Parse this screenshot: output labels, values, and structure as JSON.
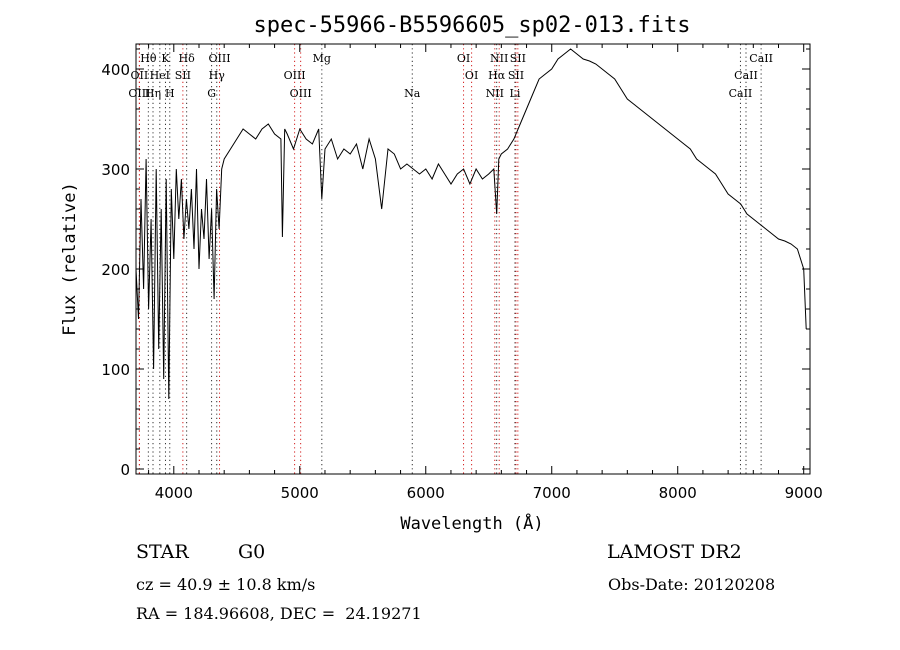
{
  "chart_data": {
    "type": "line",
    "title": "spec-55966-B5596605_sp02-013.fits",
    "xlabel": "Wavelength (Å)",
    "ylabel": "Flux (relative)",
    "xlim": [
      3700,
      9050
    ],
    "ylim": [
      -5,
      425
    ],
    "xticks": [
      4000,
      5000,
      6000,
      7000,
      8000,
      9000
    ],
    "yticks": [
      0,
      100,
      200,
      300,
      400
    ],
    "grid": false,
    "series": [
      {
        "name": "spectrum",
        "x": [
          3700,
          3720,
          3740,
          3760,
          3780,
          3800,
          3820,
          3840,
          3860,
          3880,
          3900,
          3920,
          3940,
          3960,
          3980,
          4000,
          4020,
          4040,
          4060,
          4080,
          4100,
          4120,
          4140,
          4160,
          4180,
          4200,
          4220,
          4240,
          4260,
          4280,
          4300,
          4320,
          4340,
          4360,
          4380,
          4400,
          4450,
          4500,
          4550,
          4600,
          4650,
          4700,
          4750,
          4800,
          4850,
          4862,
          4880,
          4900,
          4950,
          5000,
          5050,
          5100,
          5150,
          5175,
          5200,
          5250,
          5300,
          5350,
          5400,
          5450,
          5500,
          5550,
          5600,
          5650,
          5700,
          5750,
          5800,
          5850,
          5900,
          5950,
          6000,
          6050,
          6100,
          6150,
          6200,
          6250,
          6300,
          6350,
          6400,
          6450,
          6500,
          6540,
          6563,
          6580,
          6600,
          6650,
          6700,
          6750,
          6800,
          6850,
          6900,
          6950,
          7000,
          7050,
          7100,
          7150,
          7200,
          7250,
          7300,
          7350,
          7400,
          7450,
          7500,
          7550,
          7600,
          7650,
          7700,
          7750,
          7800,
          7850,
          7900,
          7950,
          8000,
          8050,
          8100,
          8150,
          8200,
          8250,
          8300,
          8350,
          8400,
          8450,
          8500,
          8550,
          8600,
          8650,
          8700,
          8750,
          8800,
          8850,
          8900,
          8950,
          9000,
          9020
        ],
        "values": [
          200,
          150,
          270,
          180,
          310,
          160,
          250,
          100,
          300,
          120,
          260,
          90,
          290,
          70,
          280,
          210,
          300,
          250,
          290,
          230,
          270,
          240,
          280,
          220,
          300,
          200,
          260,
          230,
          290,
          210,
          260,
          170,
          280,
          240,
          300,
          310,
          320,
          330,
          340,
          335,
          330,
          340,
          345,
          335,
          330,
          232,
          340,
          335,
          320,
          340,
          330,
          325,
          340,
          270,
          320,
          330,
          310,
          320,
          315,
          325,
          300,
          330,
          310,
          260,
          320,
          315,
          300,
          305,
          300,
          295,
          300,
          290,
          305,
          295,
          285,
          295,
          300,
          285,
          300,
          290,
          295,
          300,
          255,
          310,
          315,
          320,
          330,
          345,
          360,
          375,
          390,
          395,
          400,
          410,
          415,
          420,
          415,
          410,
          408,
          405,
          400,
          395,
          390,
          380,
          370,
          365,
          360,
          355,
          350,
          345,
          340,
          335,
          330,
          325,
          320,
          310,
          305,
          300,
          295,
          285,
          275,
          270,
          265,
          255,
          250,
          245,
          240,
          235,
          230,
          228,
          225,
          220,
          200,
          140
        ]
      }
    ],
    "lines": [
      {
        "name": "Hθ",
        "x": 3798,
        "row": 1,
        "color": "black"
      },
      {
        "name": "K",
        "x": 3934,
        "row": 1,
        "color": "black"
      },
      {
        "name": "Hδ",
        "x": 4102,
        "row": 1,
        "color": "black"
      },
      {
        "name": "OIII",
        "x": 4363,
        "row": 1,
        "color": "red"
      },
      {
        "name": "Mg",
        "x": 5175,
        "row": 1,
        "color": "black"
      },
      {
        "name": "OI",
        "x": 6300,
        "row": 1,
        "color": "red"
      },
      {
        "name": "NII",
        "x": 6583,
        "row": 1,
        "color": "red"
      },
      {
        "name": "SII",
        "x": 6731,
        "row": 1,
        "color": "red"
      },
      {
        "name": "CaII",
        "x": 8662,
        "row": 1,
        "color": "black"
      },
      {
        "name": "OII",
        "x": 3727,
        "row": 2,
        "color": "red"
      },
      {
        "name": "HeI",
        "x": 3889,
        "row": 2,
        "color": "black"
      },
      {
        "name": "SII",
        "x": 4072,
        "row": 2,
        "color": "red"
      },
      {
        "name": "Hγ",
        "x": 4341,
        "row": 2,
        "color": "black"
      },
      {
        "name": "OIII",
        "x": 4959,
        "row": 2,
        "color": "red"
      },
      {
        "name": "OI",
        "x": 6364,
        "row": 2,
        "color": "red"
      },
      {
        "name": "Hα",
        "x": 6563,
        "row": 2,
        "color": "black"
      },
      {
        "name": "SII",
        "x": 6716,
        "row": 2,
        "color": "red"
      },
      {
        "name": "CaII",
        "x": 8542,
        "row": 2,
        "color": "black"
      },
      {
        "name": "OIII",
        "x": 3727,
        "row": 3,
        "color": "red"
      },
      {
        "name": "Hη",
        "x": 3835,
        "row": 3,
        "color": "black"
      },
      {
        "name": "H",
        "x": 3968,
        "row": 3,
        "color": "black"
      },
      {
        "name": "G",
        "x": 4300,
        "row": 3,
        "color": "black"
      },
      {
        "name": "OIII",
        "x": 5007,
        "row": 3,
        "color": "red"
      },
      {
        "name": "Na",
        "x": 5893,
        "row": 3,
        "color": "black"
      },
      {
        "name": "NII",
        "x": 6548,
        "row": 3,
        "color": "red"
      },
      {
        "name": "Li",
        "x": 6708,
        "row": 3,
        "color": "black"
      },
      {
        "name": "CaII",
        "x": 8498,
        "row": 3,
        "color": "black"
      }
    ]
  },
  "info": {
    "class_label": "STAR",
    "subclass_label": "G0",
    "survey_label": "LAMOST DR2",
    "cz_text": "cz = 40.9 ± 10.8 km/s",
    "obs_date_text": "Obs-Date: 20120208",
    "coords_text": "RA = 184.96608, DEC =  24.19271"
  },
  "colors": {
    "line_marker_red": "#d42020",
    "line_marker_black": "#333333",
    "spectrum": "#000000"
  }
}
